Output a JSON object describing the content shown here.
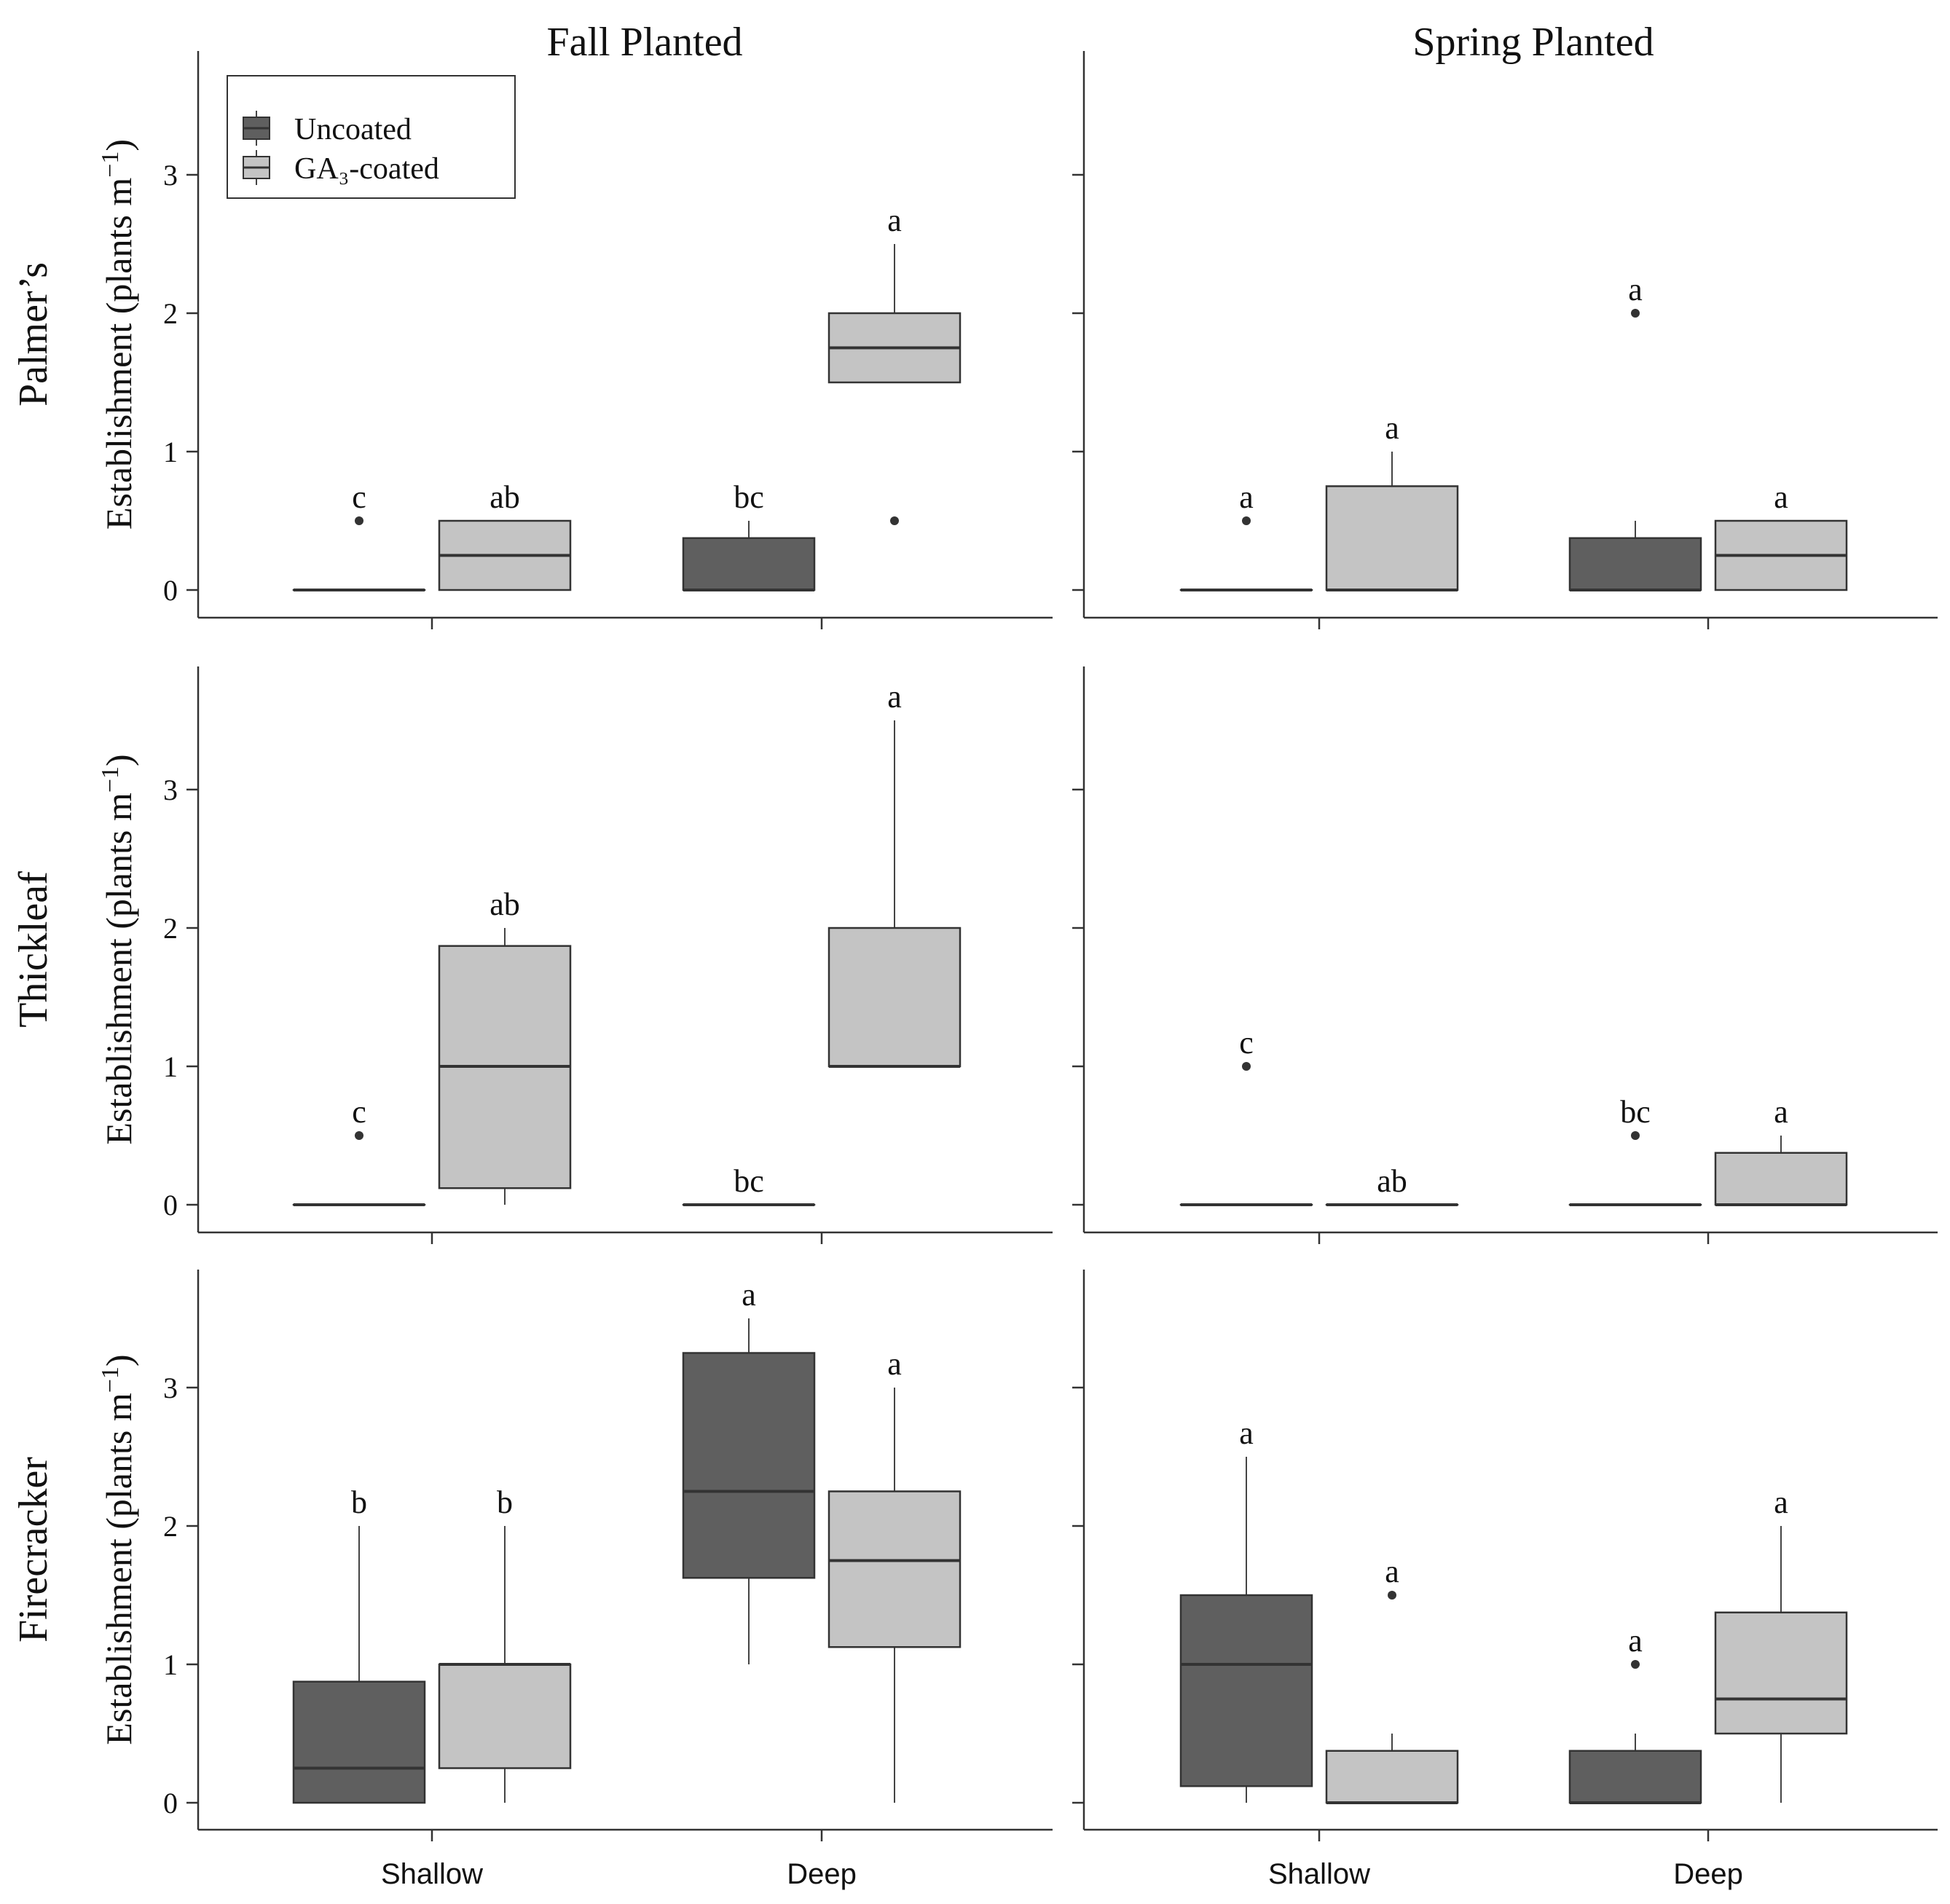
{
  "chart_data": {
    "type": "boxplot",
    "ylabel_main": "Establishment (plants m",
    "ylabel_sup": "−1",
    "ylabel_end": ")",
    "columns": [
      "Fall Planted",
      "Spring Planted"
    ],
    "rows": [
      "Palmer’s",
      "Thickleaf",
      "Firecracker"
    ],
    "categories": [
      "Shallow",
      "Deep"
    ],
    "yticks": [
      "0",
      "1",
      "2",
      "3"
    ],
    "ylim": [
      -0.2,
      3.9
    ],
    "legend": {
      "items": [
        {
          "name": "Uncoated",
          "color": "#5f5f5f"
        },
        {
          "name": "GA₃-coated",
          "color": "#c4c4c4"
        }
      ],
      "position": "top-left of top-left panel"
    },
    "colors": {
      "uncoated": "#5f5f5f",
      "coated": "#c4c4c4"
    },
    "panels": [
      {
        "row": "Palmer’s",
        "column": "Fall Planted",
        "boxes": [
          {
            "category": "Shallow",
            "series": "Uncoated",
            "min": 0,
            "q1": 0,
            "median": 0,
            "q3": 0,
            "max": 0,
            "outliers": [
              0.5
            ],
            "letter": "c"
          },
          {
            "category": "Shallow",
            "series": "GA₃-coated",
            "min": 0,
            "q1": 0,
            "median": 0.25,
            "q3": 0.5,
            "max": 0.5,
            "outliers": [],
            "letter": "ab"
          },
          {
            "category": "Deep",
            "series": "Uncoated",
            "min": 0,
            "q1": 0,
            "median": 0,
            "q3": 0.375,
            "max": 0.5,
            "outliers": [],
            "letter": "bc"
          },
          {
            "category": "Deep",
            "series": "GA₃-coated",
            "min": 1.5,
            "q1": 1.5,
            "median": 1.75,
            "q3": 2,
            "max": 2.5,
            "outliers": [
              0.5
            ],
            "letter": "a"
          }
        ]
      },
      {
        "row": "Palmer’s",
        "column": "Spring Planted",
        "boxes": [
          {
            "category": "Shallow",
            "series": "Uncoated",
            "min": 0,
            "q1": 0,
            "median": 0,
            "q3": 0,
            "max": 0,
            "outliers": [
              0.5
            ],
            "letter": "a"
          },
          {
            "category": "Shallow",
            "series": "GA₃-coated",
            "min": 0,
            "q1": 0,
            "median": 0,
            "q3": 0.75,
            "max": 1,
            "outliers": [],
            "letter": "a"
          },
          {
            "category": "Deep",
            "series": "Uncoated",
            "min": 0,
            "q1": 0,
            "median": 0,
            "q3": 0.375,
            "max": 0.5,
            "outliers": [
              2
            ],
            "letter": "a"
          },
          {
            "category": "Deep",
            "series": "GA₃-coated",
            "min": 0,
            "q1": 0,
            "median": 0.25,
            "q3": 0.5,
            "max": 0.5,
            "outliers": [],
            "letter": "a"
          }
        ]
      },
      {
        "row": "Thickleaf",
        "column": "Fall Planted",
        "boxes": [
          {
            "category": "Shallow",
            "series": "Uncoated",
            "min": 0,
            "q1": 0,
            "median": 0,
            "q3": 0,
            "max": 0,
            "outliers": [
              0.5
            ],
            "letter": "c"
          },
          {
            "category": "Shallow",
            "series": "GA₃-coated",
            "min": 0,
            "q1": 0.12,
            "median": 1,
            "q3": 1.87,
            "max": 2,
            "outliers": [],
            "letter": "ab"
          },
          {
            "category": "Deep",
            "series": "Uncoated",
            "min": 0,
            "q1": 0,
            "median": 0,
            "q3": 0,
            "max": 0,
            "outliers": [],
            "letter": "bc"
          },
          {
            "category": "Deep",
            "series": "GA₃-coated",
            "min": 1,
            "q1": 1,
            "median": 1,
            "q3": 2,
            "max": 3.5,
            "outliers": [],
            "letter": "a"
          }
        ]
      },
      {
        "row": "Thickleaf",
        "column": "Spring Planted",
        "boxes": [
          {
            "category": "Shallow",
            "series": "Uncoated",
            "min": 0,
            "q1": 0,
            "median": 0,
            "q3": 0,
            "max": 0,
            "outliers": [
              1
            ],
            "letter": "c"
          },
          {
            "category": "Shallow",
            "series": "GA₃-coated",
            "min": 0,
            "q1": 0,
            "median": 0,
            "q3": 0,
            "max": 0,
            "outliers": [],
            "letter": "ab"
          },
          {
            "category": "Deep",
            "series": "Uncoated",
            "min": 0,
            "q1": 0,
            "median": 0,
            "q3": 0,
            "max": 0,
            "outliers": [
              0.5
            ],
            "letter": "bc"
          },
          {
            "category": "Deep",
            "series": "GA₃-coated",
            "min": 0,
            "q1": 0,
            "median": 0,
            "q3": 0.375,
            "max": 0.5,
            "outliers": [],
            "letter": "a"
          }
        ]
      },
      {
        "row": "Firecracker",
        "column": "Fall Planted",
        "boxes": [
          {
            "category": "Shallow",
            "series": "Uncoated",
            "min": 0,
            "q1": 0,
            "median": 0.25,
            "q3": 0.875,
            "max": 2,
            "outliers": [],
            "letter": "b"
          },
          {
            "category": "Shallow",
            "series": "GA₃-coated",
            "min": 0,
            "q1": 0.25,
            "median": 1,
            "q3": 1,
            "max": 2,
            "outliers": [],
            "letter": "b"
          },
          {
            "category": "Deep",
            "series": "Uncoated",
            "min": 1,
            "q1": 1.625,
            "median": 2.25,
            "q3": 3.25,
            "max": 3.5,
            "outliers": [],
            "letter": "a"
          },
          {
            "category": "Deep",
            "series": "GA₃-coated",
            "min": 0,
            "q1": 1.125,
            "median": 1.75,
            "q3": 2.25,
            "max": 3,
            "outliers": [],
            "letter": "a"
          }
        ]
      },
      {
        "row": "Firecracker",
        "column": "Spring Planted",
        "boxes": [
          {
            "category": "Shallow",
            "series": "Uncoated",
            "min": 0,
            "q1": 0.12,
            "median": 1,
            "q3": 1.5,
            "max": 2.5,
            "outliers": [],
            "letter": "a"
          },
          {
            "category": "Shallow",
            "series": "GA₃-coated",
            "min": 0,
            "q1": 0,
            "median": 0,
            "q3": 0.375,
            "max": 0.5,
            "outliers": [
              1.5
            ],
            "letter": "a"
          },
          {
            "category": "Deep",
            "series": "Uncoated",
            "min": 0,
            "q1": 0,
            "median": 0,
            "q3": 0.375,
            "max": 0.5,
            "outliers": [
              1
            ],
            "letter": "a"
          },
          {
            "category": "Deep",
            "series": "GA₃-coated",
            "min": 0,
            "q1": 0.5,
            "median": 0.75,
            "q3": 1.375,
            "max": 2,
            "outliers": [],
            "letter": "a"
          }
        ]
      }
    ]
  }
}
